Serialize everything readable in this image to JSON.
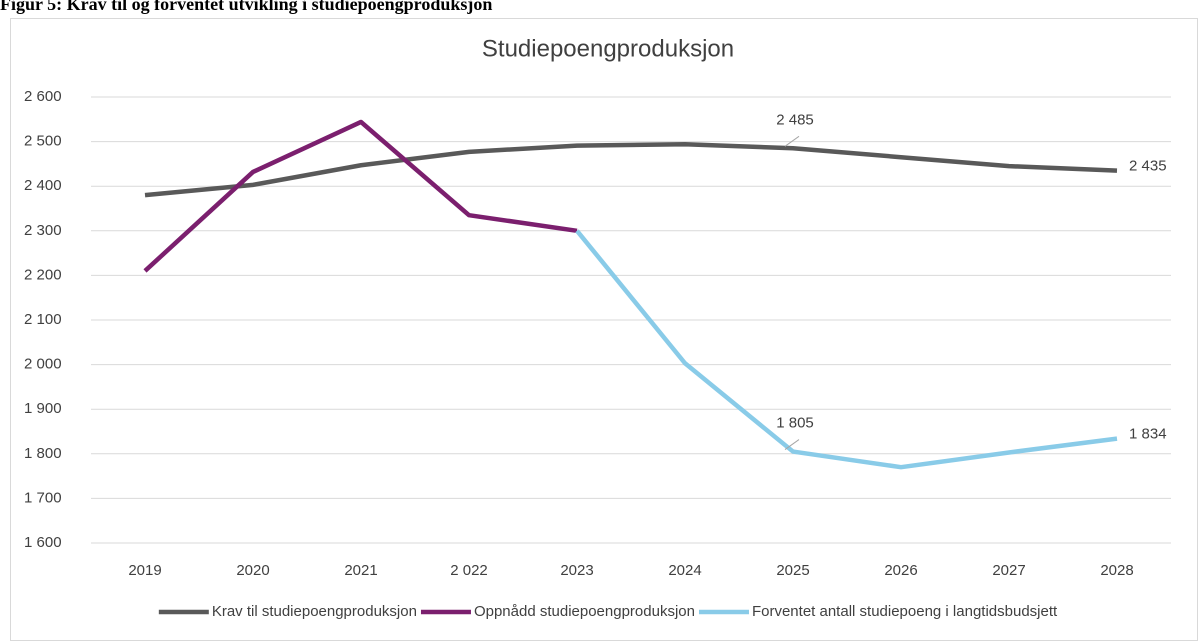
{
  "caption": "Figur 5: Krav til og forventet utvikling i studiepoengproduksjon",
  "chart_data": {
    "type": "line",
    "title": "Studiepoengproduksjon",
    "categories": [
      "2019",
      "2020",
      "2021",
      "2 022",
      "2023",
      "2024",
      "2025",
      "2026",
      "2027",
      "2028"
    ],
    "series": [
      {
        "name": "Krav til studiepoengproduksjon",
        "color": "#595959",
        "values": [
          2380,
          2403,
          2447,
          2477,
          2491,
          2494,
          2485,
          2465,
          2445,
          2435
        ],
        "value_labels": [
          null,
          null,
          null,
          null,
          null,
          null,
          "2 485",
          null,
          null,
          "2 435"
        ]
      },
      {
        "name": "Oppnådd studiepoengproduksjon",
        "color": "#7b1f6e",
        "values": [
          2210,
          2432,
          2544,
          2335,
          2300,
          null,
          null,
          null,
          null,
          null
        ]
      },
      {
        "name": "Forventet antall studiepoeng i langtidsbudsjett",
        "color": "#89cbe8",
        "values": [
          null,
          null,
          null,
          null,
          2300,
          2003,
          1805,
          1770,
          1803,
          1834
        ],
        "value_labels": [
          null,
          null,
          null,
          null,
          null,
          null,
          "1 805",
          null,
          null,
          "1 834"
        ]
      }
    ],
    "ylim": [
      1600,
      2600
    ],
    "yticks": [
      {
        "value": 1600,
        "label": "1 600"
      },
      {
        "value": 1700,
        "label": "1 700"
      },
      {
        "value": 1800,
        "label": "1 800"
      },
      {
        "value": 1900,
        "label": "1 900"
      },
      {
        "value": 2000,
        "label": "2 000"
      },
      {
        "value": 2100,
        "label": "2 100"
      },
      {
        "value": 2200,
        "label": "2 200"
      },
      {
        "value": 2300,
        "label": "2 300"
      },
      {
        "value": 2400,
        "label": "2 400"
      },
      {
        "value": 2500,
        "label": "2 500"
      },
      {
        "value": 2600,
        "label": "2 600"
      }
    ],
    "grid": true,
    "legend": "bottom"
  }
}
